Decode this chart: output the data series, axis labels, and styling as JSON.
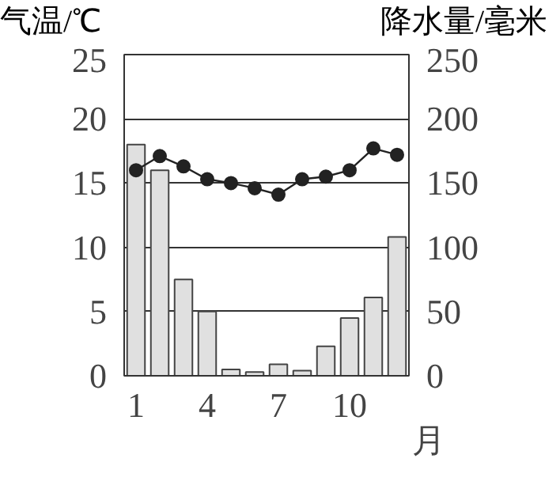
{
  "chart_data": {
    "type": "bar",
    "ylabel": "气温/℃",
    "y2label": "降水量/毫米",
    "xlabel": "月",
    "categories": [
      "1",
      null,
      null,
      "4",
      null,
      null,
      "7",
      null,
      null,
      "10",
      null,
      null
    ],
    "series": [
      {
        "axis": "y2",
        "color": "#e0e0e0",
        "values": [
          180,
          160,
          75,
          50,
          5,
          3,
          9,
          4,
          23,
          45,
          61,
          108
        ]
      },
      {
        "type": "line",
        "axis": "y",
        "color": "#222222",
        "marker": "circle",
        "line_style": "solid",
        "values": [
          16,
          17.1,
          16.3,
          15.3,
          15,
          14.6,
          14.1,
          15.3,
          15.5,
          16,
          17.7,
          17.2
        ]
      }
    ],
    "ylim": [
      0,
      25
    ],
    "yticks": [
      0,
      5,
      10,
      15,
      20,
      25
    ],
    "y2lim": [
      0,
      250
    ],
    "y2ticks": [
      0,
      50,
      100,
      150,
      200,
      250
    ],
    "grid": "y"
  }
}
